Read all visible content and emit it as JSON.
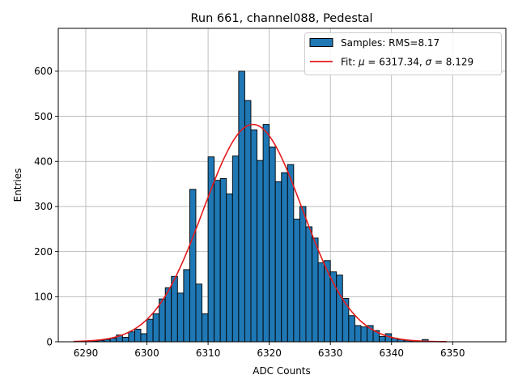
{
  "chart_data": {
    "type": "bar",
    "title": "Run 661, channel088, Pedestal",
    "xlabel": "ADC Counts",
    "ylabel": "Entries",
    "xlim": [
      6285.5,
      6358.7
    ],
    "ylim": [
      0,
      695
    ],
    "xticks": [
      6290,
      6300,
      6310,
      6320,
      6330,
      6340,
      6350
    ],
    "yticks": [
      0,
      100,
      200,
      300,
      400,
      500,
      600
    ],
    "grid": true,
    "legend_position": "top-right",
    "bin_width": 1,
    "histogram": {
      "name": "Samples: RMS=8.17",
      "color": "#1f77b4",
      "edgecolor": "#000000",
      "bins": [
        6290,
        6291,
        6292,
        6293,
        6294,
        6295,
        6296,
        6297,
        6298,
        6299,
        6300,
        6301,
        6302,
        6303,
        6304,
        6305,
        6306,
        6307,
        6308,
        6309,
        6310,
        6311,
        6312,
        6313,
        6314,
        6315,
        6316,
        6317,
        6318,
        6319,
        6320,
        6321,
        6322,
        6323,
        6324,
        6325,
        6326,
        6327,
        6328,
        6329,
        6330,
        6331,
        6332,
        6333,
        6334,
        6335,
        6336,
        6337,
        6338,
        6339,
        6340,
        6341,
        6342,
        6343,
        6344,
        6345,
        6346
      ],
      "values": [
        1,
        2,
        3,
        5,
        8,
        15,
        10,
        22,
        28,
        18,
        50,
        62,
        95,
        120,
        145,
        108,
        160,
        338,
        128,
        62,
        410,
        358,
        362,
        328,
        412,
        600,
        535,
        470,
        402,
        482,
        432,
        355,
        375,
        393,
        272,
        300,
        255,
        230,
        175,
        180,
        155,
        148,
        96,
        58,
        36,
        33,
        36,
        25,
        12,
        18,
        8,
        5,
        3,
        2,
        2,
        5,
        1
      ]
    },
    "fit": {
      "name": "Fit: μ = 6317.34, σ = 8.129",
      "legend_prefix": "Fit: ",
      "mu_symbol": "μ",
      "sigma_symbol": "σ",
      "mu_text": " = 6317.34, ",
      "sigma_text": " = 8.129",
      "color": "#e41a1c",
      "mu": 6317.34,
      "sigma": 8.129,
      "amplitude": 482,
      "x_range": [
        6288,
        6349
      ]
    }
  }
}
